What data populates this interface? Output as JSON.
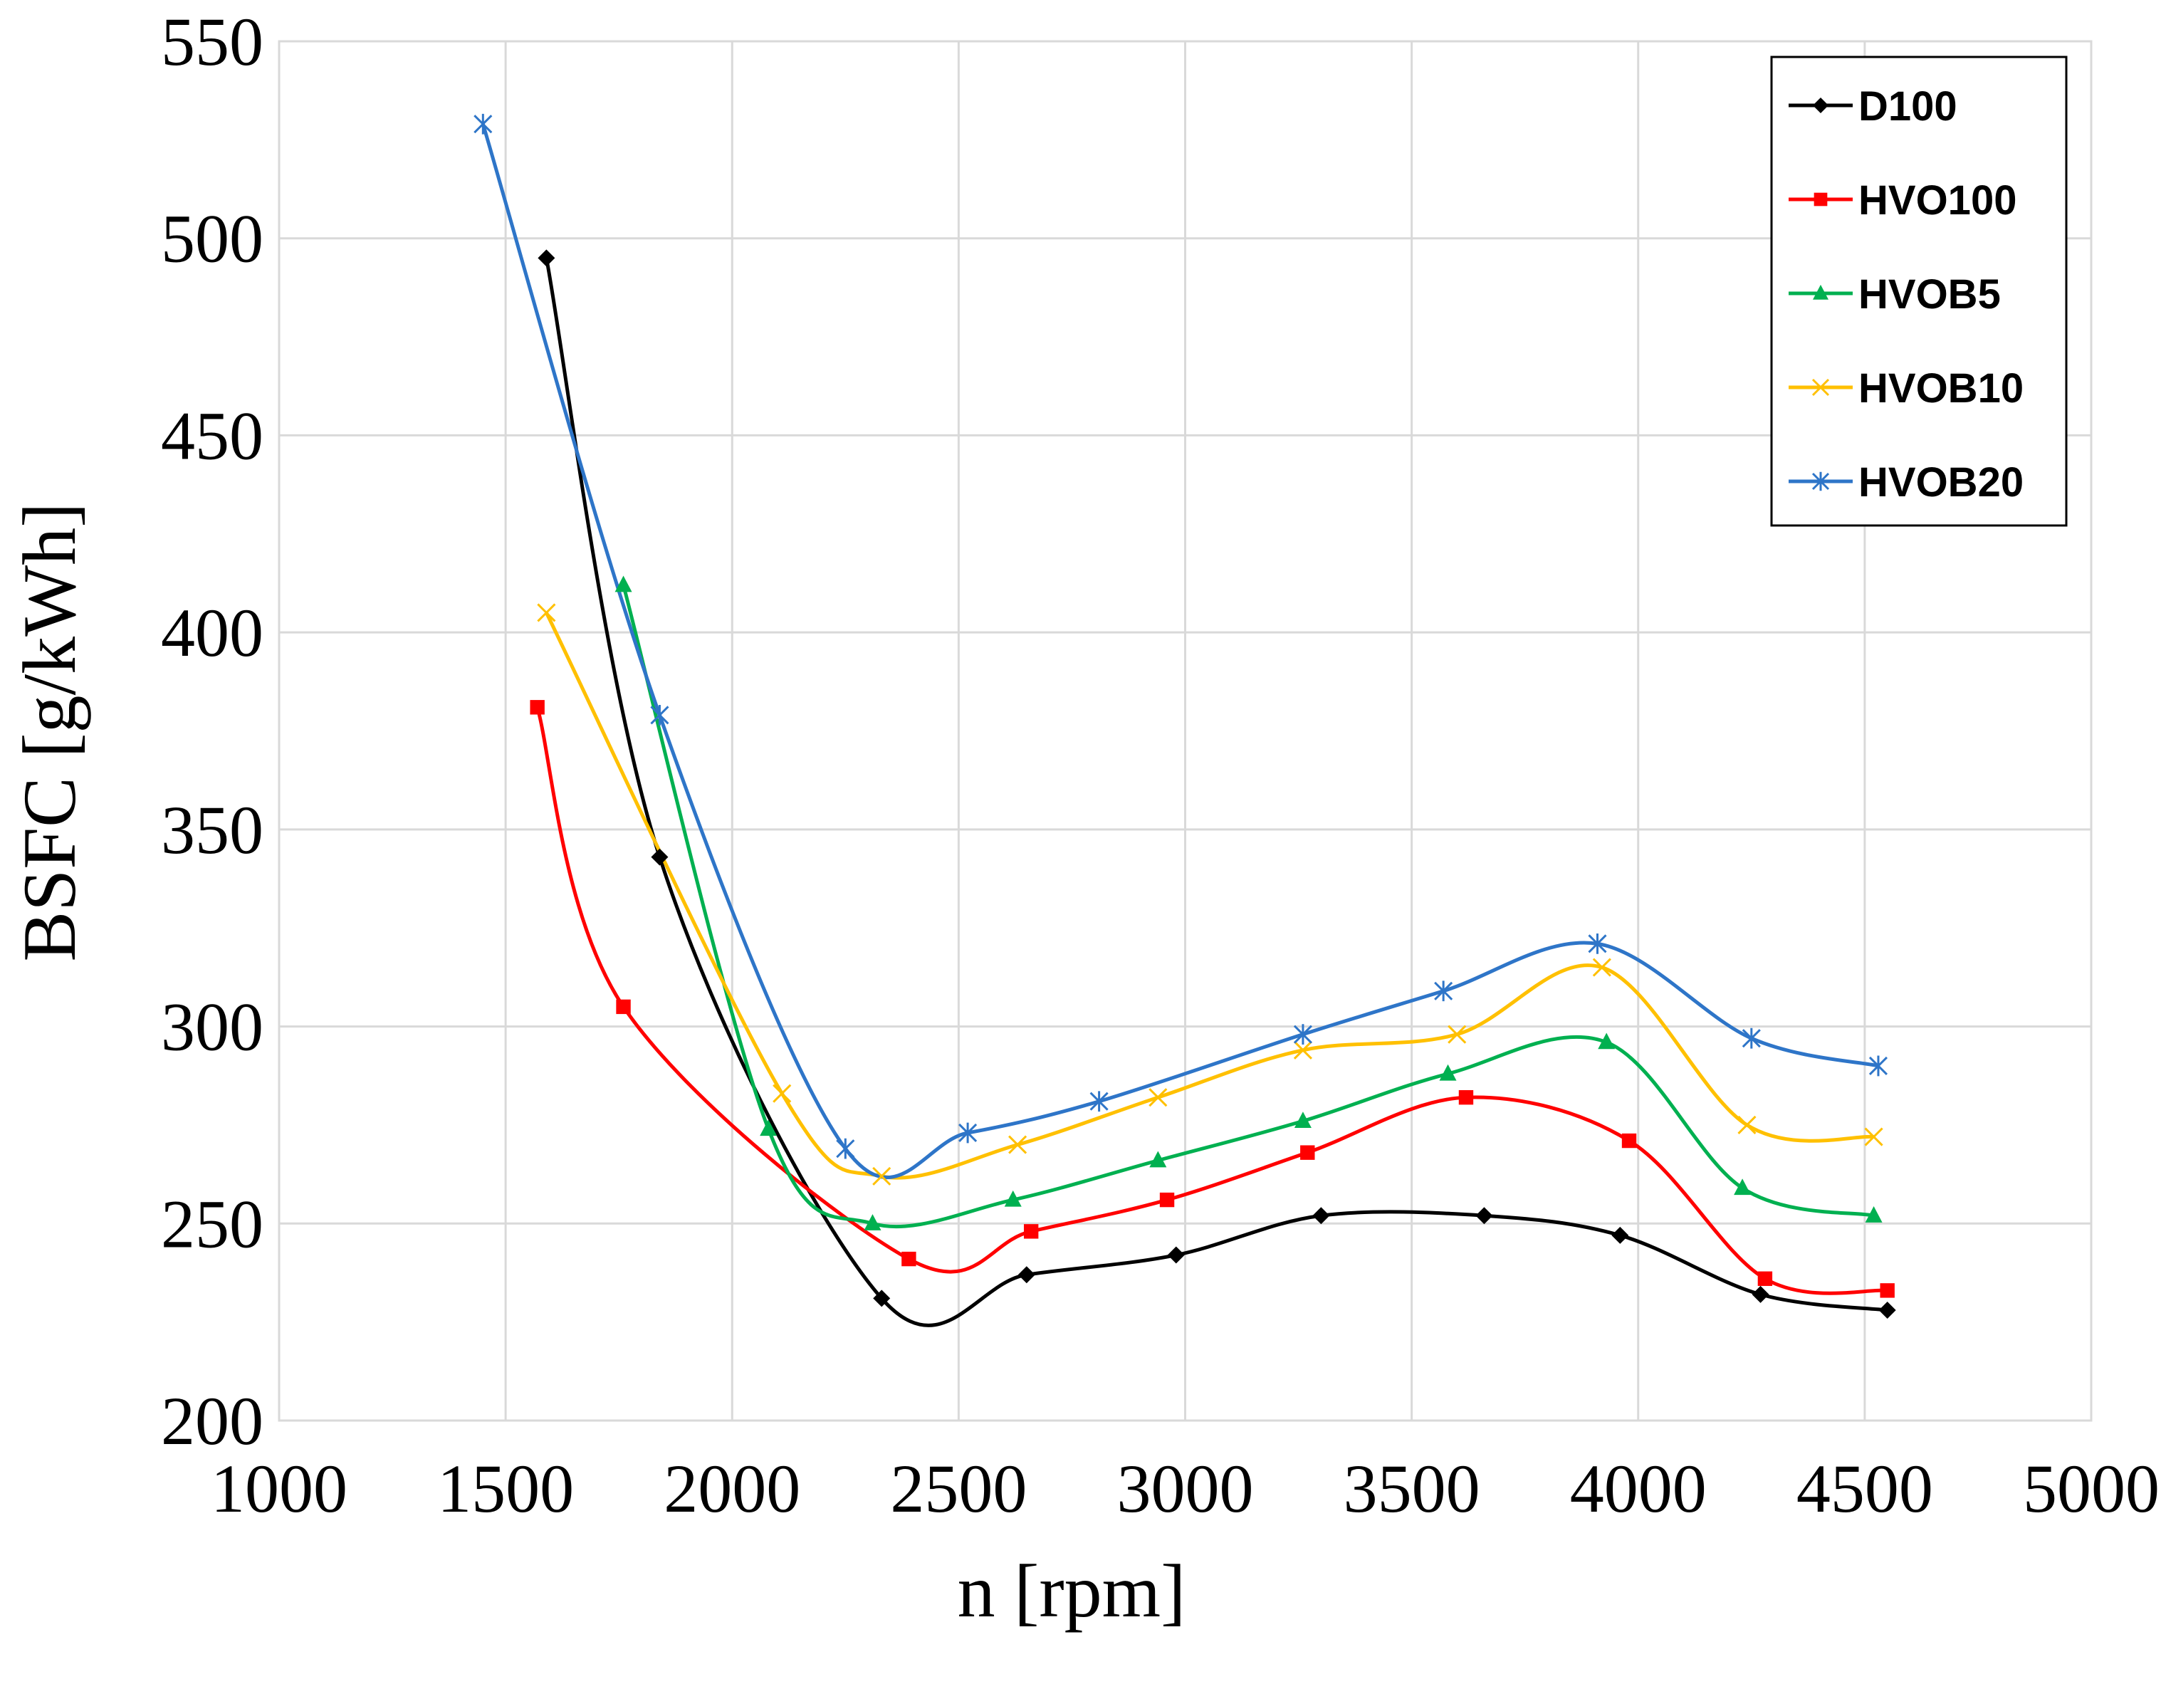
{
  "chart_data": {
    "type": "line",
    "title": "",
    "xlabel": "n [rpm]",
    "ylabel": "BSFC [g/kWh]",
    "xlim": [
      1000,
      5000
    ],
    "ylim": [
      200,
      550
    ],
    "xticks": [
      1000,
      1500,
      2000,
      2500,
      3000,
      3500,
      4000,
      4500,
      5000
    ],
    "yticks": [
      200,
      250,
      300,
      350,
      400,
      450,
      500,
      550
    ],
    "grid": true,
    "legend_position": "top-right",
    "series": [
      {
        "name": "D100",
        "color": "#000000",
        "marker": "diamond",
        "x": [
          1590,
          1840,
          2330,
          2650,
          2980,
          3300,
          3660,
          3960,
          4270,
          4550
        ],
        "y": [
          495,
          343,
          231,
          237,
          242,
          252,
          252,
          247,
          232,
          228
        ]
      },
      {
        "name": "HVO100",
        "color": "#ff0000",
        "marker": "square",
        "x": [
          1570,
          1760,
          2390,
          2660,
          2960,
          3270,
          3620,
          3980,
          4280,
          4550
        ],
        "y": [
          381,
          305,
          241,
          248,
          256,
          268,
          282,
          271,
          236,
          233
        ]
      },
      {
        "name": "HVOB5",
        "color": "#00b050",
        "marker": "triangle",
        "x": [
          1760,
          2080,
          2310,
          2620,
          2940,
          3260,
          3580,
          3930,
          4230,
          4520
        ],
        "y": [
          412,
          274,
          250,
          256,
          266,
          276,
          288,
          296,
          259,
          252
        ]
      },
      {
        "name": "HVOB10",
        "color": "#ffc000",
        "marker": "x",
        "x": [
          1590,
          2110,
          2330,
          2630,
          2940,
          3260,
          3600,
          3920,
          4240,
          4520
        ],
        "y": [
          405,
          283,
          262,
          270,
          282,
          294,
          298,
          315,
          275,
          272
        ]
      },
      {
        "name": "HVOB20",
        "color": "#2e75c8",
        "marker": "asterisk",
        "x": [
          1450,
          1840,
          2250,
          2520,
          2810,
          3260,
          3570,
          3910,
          4250,
          4530
        ],
        "y": [
          529,
          379,
          269,
          273,
          281,
          298,
          309,
          321,
          297,
          290
        ]
      }
    ]
  }
}
